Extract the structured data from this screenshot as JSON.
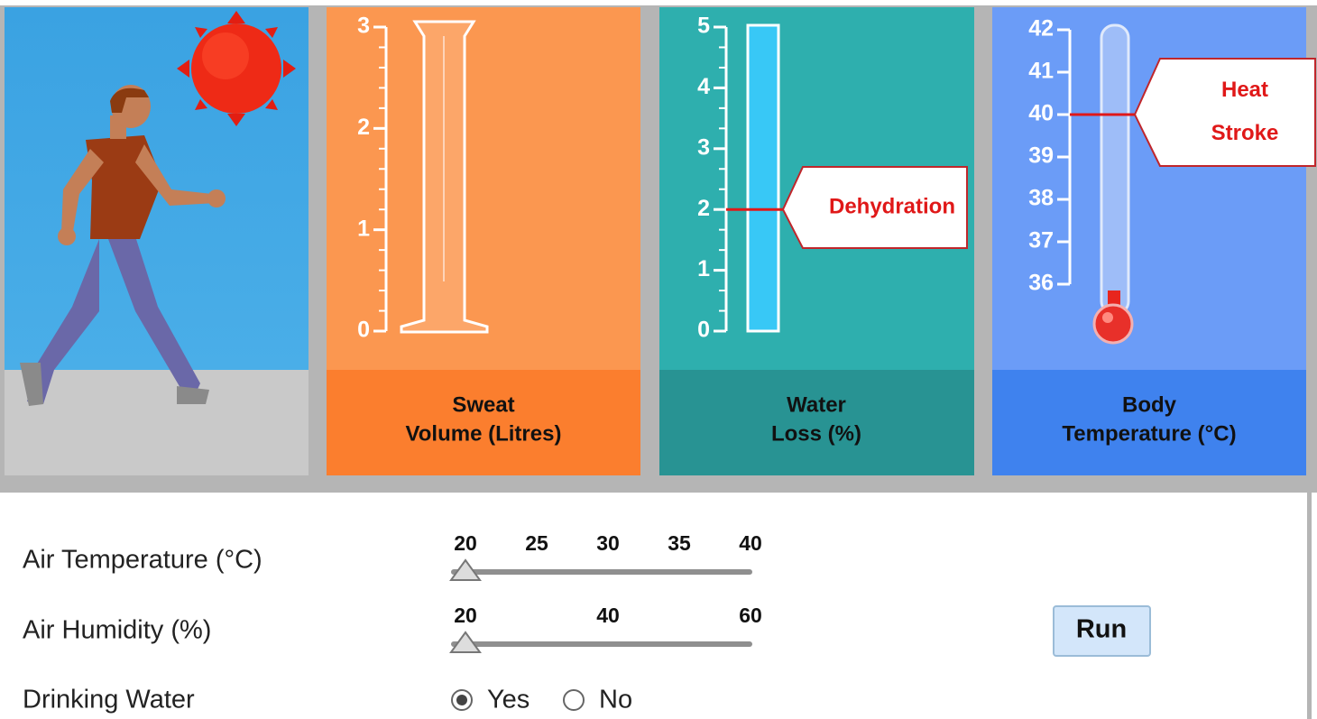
{
  "panels": [
    {
      "ticks": [
        0,
        1,
        2,
        3
      ],
      "label": [
        "Sweat",
        "Volume (Litres)"
      ]
    },
    {
      "ticks": [
        0,
        1,
        2,
        3,
        4,
        5
      ],
      "label": [
        "Water",
        "Loss (%)"
      ],
      "marker": {
        "value": 2,
        "label": [
          "Dehydration"
        ]
      }
    },
    {
      "ticks": [
        36,
        37,
        38,
        39,
        40,
        41,
        42
      ],
      "label": [
        "Body",
        "Temperature (°C)"
      ],
      "marker": {
        "value": 40,
        "label": [
          "Heat",
          "Stroke"
        ]
      }
    }
  ],
  "controls": {
    "air_temperature": {
      "label": "Air Temperature (°C)",
      "ticks": [
        20,
        25,
        30,
        35,
        40
      ],
      "value": 20
    },
    "air_humidity": {
      "label": "Air Humidity (%)",
      "ticks": [
        20,
        40,
        60
      ],
      "value": 20
    },
    "drinking_water": {
      "label": "Drinking Water",
      "options": [
        "Yes",
        "No"
      ],
      "selected": "Yes"
    }
  },
  "run_button": "Run"
}
